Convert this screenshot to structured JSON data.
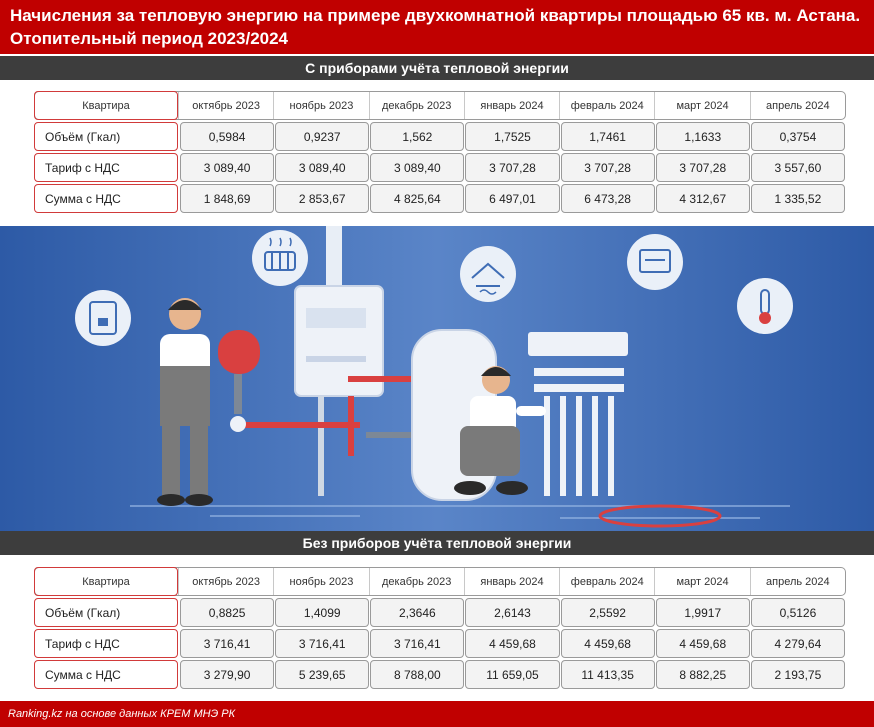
{
  "header": {
    "line1": "Начисления за тепловую энергию на примере двухкомнатной квартиры площадью 65 кв. м. Астана.",
    "line2": "Отопительный период 2023/2024"
  },
  "section1": {
    "title": "С приборами учёта тепловой энергии",
    "corner_label": "Квартира",
    "months": [
      "октябрь 2023",
      "ноябрь 2023",
      "декабрь 2023",
      "январь 2024",
      "февраль 2024",
      "март 2024",
      "апрель 2024"
    ],
    "rows": [
      {
        "label": "Объём (Гкал)",
        "values": [
          "0,5984",
          "0,9237",
          "1,562",
          "1,7525",
          "1,7461",
          "1,1633",
          "0,3754"
        ]
      },
      {
        "label": "Тариф с НДС",
        "values": [
          "3 089,40",
          "3 089,40",
          "3 089,40",
          "3 707,28",
          "3 707,28",
          "3 707,28",
          "3 557,60"
        ]
      },
      {
        "label": "Сумма с НДС",
        "values": [
          "1 848,69",
          "2 853,67",
          "4 825,64",
          "6 497,01",
          "6 473,28",
          "4 312,67",
          "1 335,52"
        ]
      }
    ]
  },
  "section2": {
    "title": "Без приборов учёта тепловой энергии",
    "corner_label": "Квартира",
    "months": [
      "октябрь 2023",
      "ноябрь 2023",
      "декабрь 2023",
      "январь 2024",
      "февраль 2024",
      "март 2024",
      "апрель 2024"
    ],
    "rows": [
      {
        "label": "Объём (Гкал)",
        "values": [
          "0,8825",
          "1,4099",
          "2,3646",
          "2,6143",
          "2,5592",
          "1,9917",
          "0,5126"
        ]
      },
      {
        "label": "Тариф с НДС",
        "values": [
          "3 716,41",
          "3 716,41",
          "3 716,41",
          "4 459,68",
          "4 459,68",
          "4 459,68",
          "4 279,64"
        ]
      },
      {
        "label": "Сумма с НДС",
        "values": [
          "3 279,90",
          "5 239,65",
          "8 788,00",
          "11 659,05",
          "11 413,35",
          "8 882,25",
          "2 193,75"
        ]
      }
    ]
  },
  "illustration": {
    "icons": [
      "radiator-icon",
      "water-heater-icon",
      "floor-heating-icon",
      "thermostat-panel-icon",
      "thermometer-icon"
    ],
    "colors": {
      "background": "#3f6db5",
      "accent": "#d94040",
      "light": "#eaf0f8"
    }
  },
  "footer": {
    "source": "Ranking.kz на основе данных КРЕМ МНЭ РК"
  }
}
